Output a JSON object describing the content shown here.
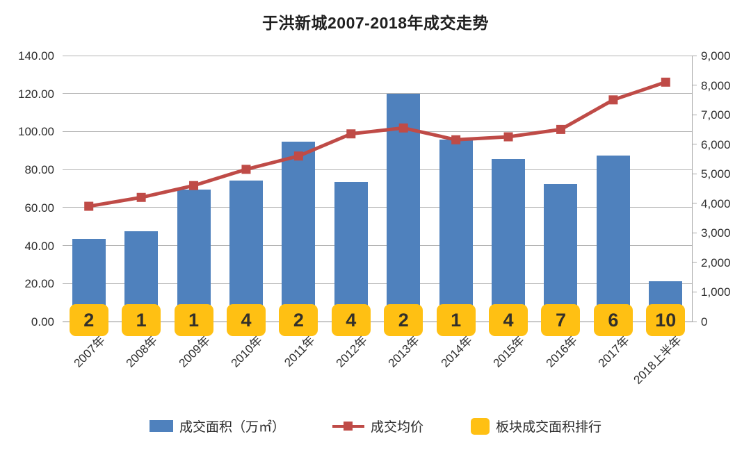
{
  "title": "于洪新城2007-2018年成交走势",
  "chart_data": {
    "type": "bar",
    "title": "于洪新城2007-2018年成交走势",
    "categories": [
      "2007年",
      "2008年",
      "2009年",
      "2010年",
      "2011年",
      "2012年",
      "2013年",
      "2014年",
      "2015年",
      "2016年",
      "2017年",
      "2018上半年"
    ],
    "series": [
      {
        "name": "成交面积（万㎡）",
        "type": "bar",
        "axis": "left",
        "color": "#4f81bd",
        "values": [
          43.5,
          47.5,
          69.5,
          74.3,
          94.5,
          73.5,
          120.0,
          95.8,
          85.5,
          72.5,
          87.5,
          21.3
        ]
      },
      {
        "name": "成交均价",
        "type": "line",
        "axis": "right",
        "color": "#bf4b47",
        "values": [
          3900,
          4200,
          4600,
          5150,
          5600,
          6350,
          6550,
          6150,
          6250,
          6500,
          7500,
          8100
        ]
      },
      {
        "name": "板块成交面积排行",
        "type": "rank-label",
        "color": "#ffc013",
        "values": [
          2,
          1,
          1,
          4,
          2,
          4,
          2,
          1,
          4,
          7,
          6,
          10
        ]
      }
    ],
    "left_axis": {
      "min": 0,
      "max": 140,
      "ticks": [
        "0.00",
        "20.00",
        "40.00",
        "60.00",
        "80.00",
        "100.00",
        "120.00",
        "140.00"
      ]
    },
    "right_axis": {
      "min": 0,
      "max": 9000,
      "ticks": [
        "0",
        "1,000",
        "2,000",
        "3,000",
        "4,000",
        "5,000",
        "6,000",
        "7,000",
        "8,000",
        "9,000"
      ]
    },
    "grid": "horizontal",
    "legend_position": "bottom"
  }
}
